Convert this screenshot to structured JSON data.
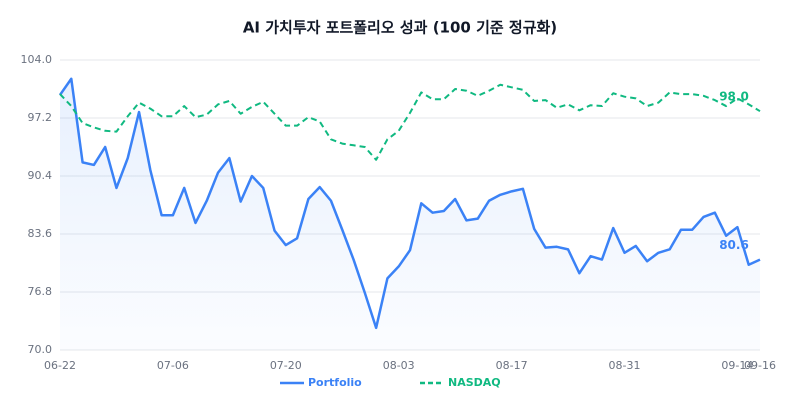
{
  "chart_data": {
    "type": "line",
    "title": "AI 가치투자 포트폴리오 성과 (100 기준 정규화)",
    "categories": [
      "06-22",
      null,
      null,
      null,
      null,
      null,
      null,
      null,
      null,
      null,
      "07-06",
      null,
      null,
      null,
      null,
      null,
      null,
      null,
      null,
      null,
      "07-20",
      null,
      null,
      null,
      null,
      null,
      null,
      null,
      null,
      null,
      "08-03",
      null,
      null,
      null,
      null,
      null,
      null,
      null,
      null,
      null,
      "08-17",
      null,
      null,
      null,
      null,
      null,
      null,
      null,
      null,
      null,
      "08-31",
      null,
      null,
      null,
      null,
      null,
      null,
      null,
      null,
      null,
      "09-14",
      null,
      "09-16"
    ],
    "series": [
      {
        "name": "Portfolio",
        "color": "#3b82f6",
        "dashed": false,
        "area": true,
        "values": [
          99.9,
          101.8,
          92.0,
          91.7,
          93.8,
          89.0,
          92.5,
          97.9,
          91.1,
          85.8,
          85.8,
          89.0,
          84.9,
          87.5,
          90.8,
          92.5,
          87.4,
          90.4,
          89.0,
          84.0,
          82.3,
          83.1,
          87.7,
          89.1,
          87.5,
          84.1,
          80.6,
          76.7,
          72.6,
          78.4,
          79.8,
          81.7,
          87.2,
          86.1,
          86.3,
          87.7,
          85.2,
          85.4,
          87.5,
          88.2,
          88.6,
          88.9,
          84.2,
          82.0,
          82.1,
          81.8,
          79.0,
          81.0,
          80.6,
          84.3,
          81.4,
          82.2,
          80.4,
          81.4,
          81.8,
          84.1,
          84.1,
          85.6,
          86.1,
          83.4,
          84.4,
          80.0,
          80.6
        ],
        "value_labels": [
          null,
          null,
          null,
          null,
          null,
          null,
          null,
          null,
          null,
          null,
          null,
          null,
          null,
          null,
          null,
          null,
          null,
          null,
          null,
          null,
          null,
          null,
          null,
          null,
          null,
          null,
          null,
          null,
          null,
          null,
          null,
          null,
          null,
          null,
          null,
          null,
          null,
          null,
          null,
          null,
          null,
          null,
          null,
          null,
          null,
          null,
          null,
          null,
          null,
          null,
          null,
          null,
          null,
          null,
          null,
          null,
          null,
          null,
          null,
          null,
          null,
          null,
          "80.6"
        ]
      },
      {
        "name": "NASDAQ",
        "color": "#10b981",
        "dashed": true,
        "area": false,
        "values": [
          100.0,
          98.6,
          96.6,
          96.1,
          95.7,
          95.6,
          97.4,
          99.0,
          98.3,
          97.4,
          97.4,
          98.6,
          97.3,
          97.6,
          98.8,
          99.2,
          97.7,
          98.5,
          99.1,
          97.7,
          96.3,
          96.3,
          97.3,
          96.8,
          94.7,
          94.2,
          94.0,
          93.8,
          92.3,
          94.7,
          95.7,
          97.8,
          100.2,
          99.4,
          99.4,
          100.6,
          100.4,
          99.8,
          100.4,
          101.1,
          100.8,
          100.5,
          99.2,
          99.3,
          98.4,
          98.8,
          98.1,
          98.7,
          98.6,
          100.1,
          99.7,
          99.5,
          98.6,
          99.0,
          100.2,
          100.0,
          100.0,
          99.8,
          99.3,
          98.6,
          99.5,
          98.8,
          98.0
        ],
        "value_labels": [
          null,
          null,
          null,
          null,
          null,
          null,
          null,
          null,
          null,
          null,
          null,
          null,
          null,
          null,
          null,
          null,
          null,
          null,
          null,
          null,
          null,
          null,
          null,
          null,
          null,
          null,
          null,
          null,
          null,
          null,
          null,
          null,
          null,
          null,
          null,
          null,
          null,
          null,
          null,
          null,
          null,
          null,
          null,
          null,
          null,
          null,
          null,
          null,
          null,
          null,
          null,
          null,
          null,
          null,
          null,
          null,
          null,
          null,
          null,
          null,
          null,
          null,
          "98.0"
        ]
      }
    ],
    "ylim": [
      70,
      104
    ],
    "yticks": [
      {
        "value": 70,
        "label": "70.0"
      },
      76.8,
      83.6,
      90.4,
      97.2,
      {
        "value": 104,
        "label": "104.0"
      }
    ],
    "grid": true,
    "legend": "bottom"
  }
}
